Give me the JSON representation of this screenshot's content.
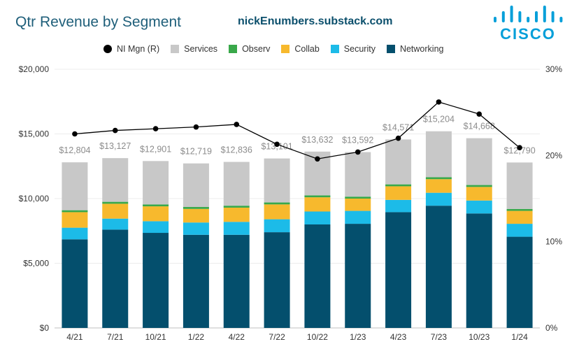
{
  "header": {
    "title": "Qtr Revenue by Segment",
    "source": "nickEnumbers.substack.com",
    "logo_text": "CISCO"
  },
  "colors": {
    "Networking": "#044f6d",
    "Security": "#1cbbe8",
    "Collab": "#f7b92d",
    "Observ": "#39a84a",
    "Services": "#c8c8c8",
    "margin_line": "#000000",
    "total_label": "#8c8c8c",
    "logo": "#049fd9"
  },
  "chart_data": {
    "type": "bar",
    "stacked": true,
    "title": "Qtr Revenue by Segment",
    "categories": [
      "4/21",
      "7/21",
      "10/21",
      "1/22",
      "4/22",
      "7/22",
      "10/22",
      "1/23",
      "4/23",
      "7/23",
      "10/23",
      "1/24"
    ],
    "series": [
      {
        "name": "Networking",
        "values": [
          6850,
          7600,
          7350,
          7200,
          7200,
          7400,
          8000,
          8050,
          8950,
          9450,
          8850,
          7050
        ]
      },
      {
        "name": "Security",
        "values": [
          900,
          850,
          900,
          950,
          1000,
          1000,
          1000,
          1000,
          950,
          1000,
          1000,
          1000
        ]
      },
      {
        "name": "Collab",
        "values": [
          1200,
          1150,
          1150,
          1050,
          1100,
          1150,
          1100,
          950,
          1050,
          1050,
          1050,
          1000
        ]
      },
      {
        "name": "Observ",
        "values": [
          150,
          150,
          150,
          150,
          150,
          150,
          150,
          150,
          150,
          150,
          150,
          150
        ]
      },
      {
        "name": "Services",
        "values": [
          3704,
          3377,
          3351,
          3369,
          3386,
          3401,
          3382,
          3442,
          3471,
          3554,
          3618,
          3590
        ]
      }
    ],
    "totals": [
      12804,
      13127,
      12901,
      12719,
      12836,
      13101,
      13632,
      13592,
      14571,
      15204,
      14668,
      12790
    ],
    "total_labels": [
      "$12,804",
      "$13,127",
      "$12,901",
      "$12,719",
      "$12,836",
      "$13,101",
      "$13,632",
      "$13,592",
      "$14,571",
      "$15,204",
      "$14,668",
      "$12,790"
    ],
    "line_series": {
      "name": "NI Mgn (R)",
      "values": [
        22.5,
        22.9,
        23.1,
        23.3,
        23.6,
        21.3,
        19.6,
        20.4,
        22.0,
        26.2,
        24.8,
        20.9
      ]
    },
    "y_left": {
      "min": 0,
      "max": 20000,
      "ticks": [
        0,
        5000,
        10000,
        15000,
        20000
      ],
      "tick_labels": [
        "$0",
        "$5,000",
        "$10,000",
        "$15,000",
        "$20,000"
      ]
    },
    "y_right": {
      "min": 0,
      "max": 30,
      "ticks": [
        0,
        10,
        20,
        30
      ],
      "tick_labels": [
        "0%",
        "10%",
        "20%",
        "30%"
      ]
    },
    "legend": [
      "NI Mgn (R)",
      "Services",
      "Observ",
      "Collab",
      "Security",
      "Networking"
    ],
    "legend_position": "top",
    "grid": true
  }
}
